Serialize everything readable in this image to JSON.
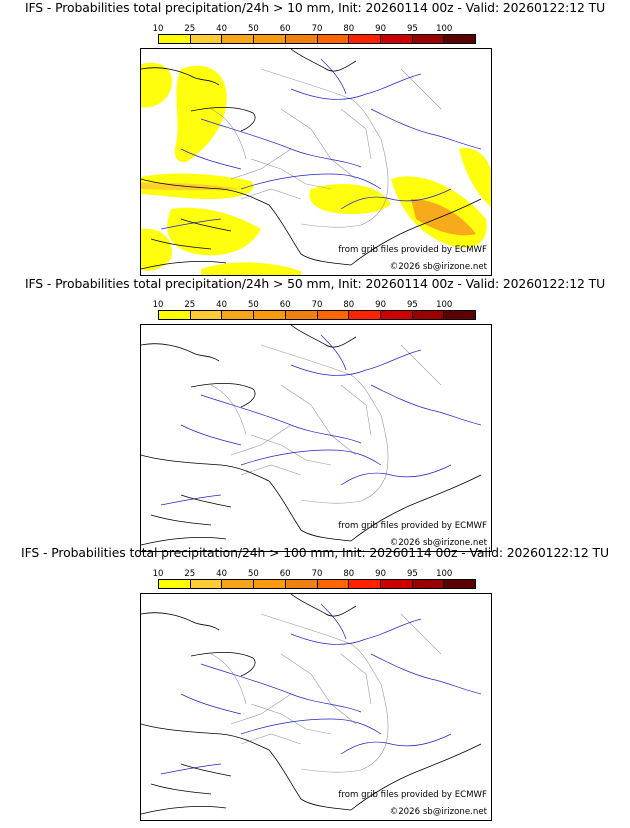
{
  "colorbar": {
    "labels": [
      "10",
      "25",
      "40",
      "50",
      "60",
      "70",
      "80",
      "90",
      "95",
      "100"
    ],
    "colors": [
      "#ffff00",
      "#ffcc33",
      "#f7a51b",
      "#f79a0d",
      "#f08010",
      "#ff6600",
      "#ff2200",
      "#cc0000",
      "#990000",
      "#5a0000"
    ]
  },
  "panels": [
    {
      "title": "IFS - Probabilities total precipitation/24h > 10 mm, Init: 20260114 00z - Valid: 20260122:12 TU",
      "credit_source": "from grib files provided by ECMWF",
      "credit_copyright": "©2026 sb@irizone.net",
      "has_precip": true
    },
    {
      "title": "IFS - Probabilities total precipitation/24h > 50 mm, Init: 20260114 00z - Valid: 20260122:12 TU",
      "credit_source": "from grib files provided by ECMWF",
      "credit_copyright": "©2026 sb@irizone.net",
      "has_precip": false
    },
    {
      "title": "IFS - Probabilities total precipitation/24h > 100 mm, Init: 20260114 00z - Valid: 20260122:12 TU",
      "credit_source": "from grib files provided by ECMWF",
      "credit_copyright": "©2026 sb@irizone.net",
      "has_precip": false
    }
  ]
}
